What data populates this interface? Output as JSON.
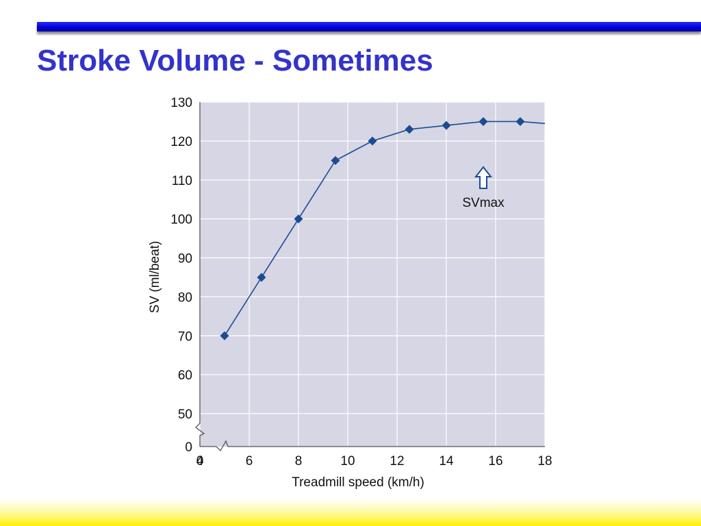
{
  "slide": {
    "title": "Stroke Volume - Sometimes"
  },
  "colors": {
    "title": "#3333cc",
    "plot_background": "#d6d6e4",
    "grid": "#ffffff",
    "series": "#1b4b94"
  },
  "chart_data": {
    "type": "line",
    "xlabel": "Treadmill speed (km/h)",
    "ylabel": "SV (ml/beat)",
    "x_ticks": [
      0,
      4,
      6,
      8,
      10,
      12,
      14,
      16,
      18
    ],
    "y_ticks": [
      0,
      50,
      60,
      70,
      80,
      90,
      100,
      110,
      120,
      130
    ],
    "xlim": [
      4,
      18
    ],
    "ylim": [
      50,
      130
    ],
    "axis_breaks": "both axes broken near origin",
    "grid": true,
    "series": [
      {
        "x": [
          5,
          6.5,
          8,
          9.5,
          11,
          12.5,
          14,
          15.5,
          17,
          18
        ],
        "y": [
          70,
          85,
          100,
          115,
          120,
          123,
          124,
          125,
          125,
          124.5
        ],
        "markers": [
          true,
          true,
          true,
          true,
          true,
          true,
          true,
          true,
          true,
          false
        ]
      }
    ],
    "annotation": {
      "text": "SVmax",
      "points_to_x": 15.5
    }
  }
}
